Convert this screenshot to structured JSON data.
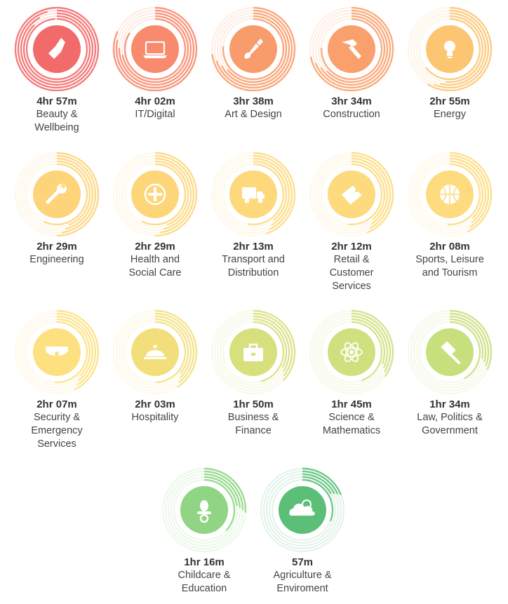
{
  "items": [
    {
      "time": "4hr 57m",
      "label": [
        "Beauty &",
        "Wellbeing"
      ],
      "color": "#f26b6b",
      "icon": "lipstick-icon",
      "fraction": 1.0
    },
    {
      "time": "4hr 02m",
      "label": [
        "IT/Digital"
      ],
      "color": "#f88a6d",
      "icon": "laptop-icon",
      "fraction": 0.82
    },
    {
      "time": "3hr 38m",
      "label": [
        "Art & Design"
      ],
      "color": "#f99c6b",
      "icon": "paintbrush-icon",
      "fraction": 0.73
    },
    {
      "time": "3hr 34m",
      "label": [
        "Construction"
      ],
      "color": "#f9a06c",
      "icon": "hammer-icon",
      "fraction": 0.72
    },
    {
      "time": "2hr 55m",
      "label": [
        "Energy"
      ],
      "color": "#fcc572",
      "icon": "lightbulb-icon",
      "fraction": 0.59
    },
    {
      "time": "2hr 29m",
      "label": [
        "Engineering"
      ],
      "color": "#fdd479",
      "icon": "wrench-icon",
      "fraction": 0.5
    },
    {
      "time": "2hr 29m",
      "label": [
        "Health and",
        "Social Care"
      ],
      "color": "#fdd67a",
      "icon": "medical-cross-icon",
      "fraction": 0.5
    },
    {
      "time": "2hr 13m",
      "label": [
        "Transport and",
        "Distribution"
      ],
      "color": "#fdd97c",
      "icon": "truck-icon",
      "fraction": 0.45
    },
    {
      "time": "2hr 12m",
      "label": [
        "Retail &",
        "Customer",
        "Services"
      ],
      "color": "#fdda7d",
      "icon": "price-tag-icon",
      "fraction": 0.44
    },
    {
      "time": "2hr 08m",
      "label": [
        "Sports, Leisure",
        "and Tourism"
      ],
      "color": "#fddb7e",
      "icon": "basketball-icon",
      "fraction": 0.43
    },
    {
      "time": "2hr 07m",
      "label": [
        "Security &",
        "Emergency",
        "Services"
      ],
      "color": "#fde07f",
      "icon": "security-camera-icon",
      "fraction": 0.43
    },
    {
      "time": "2hr 03m",
      "label": [
        "Hospitality"
      ],
      "color": "#f2df7c",
      "icon": "service-bell-icon",
      "fraction": 0.41
    },
    {
      "time": "1hr 50m",
      "label": [
        "Business &",
        "Finance"
      ],
      "color": "#d7e07c",
      "icon": "briefcase-icon",
      "fraction": 0.37
    },
    {
      "time": "1hr 45m",
      "label": [
        "Science &",
        "Mathematics"
      ],
      "color": "#cfe07e",
      "icon": "atom-icon",
      "fraction": 0.35
    },
    {
      "time": "1hr 34m",
      "label": [
        "Law, Politics &",
        "Government"
      ],
      "color": "#c8df7e",
      "icon": "gavel-icon",
      "fraction": 0.32
    },
    {
      "time": "1hr 16m",
      "label": [
        "Childcare &",
        "Education"
      ],
      "color": "#8fd584",
      "icon": "pacifier-icon",
      "fraction": 0.26
    },
    {
      "time": "57m",
      "label": [
        "Agriculture &",
        "Enviroment"
      ],
      "color": "#5bbf78",
      "icon": "cloud-icon",
      "fraction": 0.19
    }
  ]
}
